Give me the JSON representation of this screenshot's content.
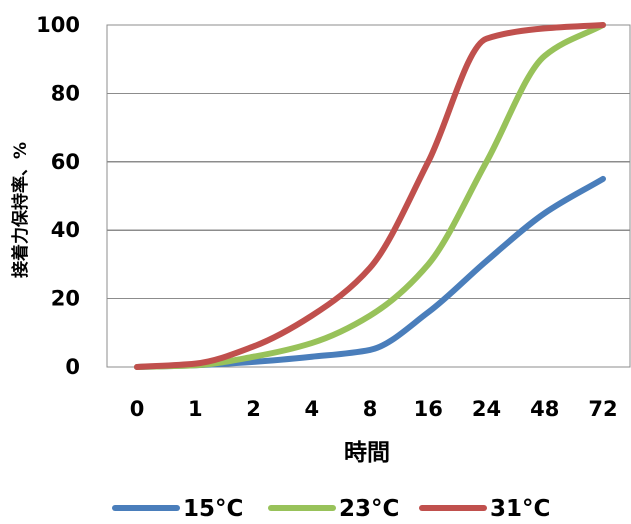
{
  "chart_data": {
    "type": "line",
    "title": "",
    "xlabel": "時間",
    "ylabel": "接着力保持率、%",
    "categories": [
      "0",
      "1",
      "2",
      "4",
      "8",
      "16",
      "24",
      "48",
      "72"
    ],
    "x": [
      0,
      1,
      2,
      3,
      4,
      5,
      6,
      7,
      8
    ],
    "y_ticks": [
      "0",
      "20",
      "40",
      "60",
      "80",
      "100"
    ],
    "ylim": [
      0,
      100
    ],
    "grid": true,
    "legend": "bottom",
    "series": [
      {
        "name": "15°C",
        "color": "#4a7ebb",
        "values": [
          0,
          0.5,
          1.5,
          3,
          5,
          16,
          31,
          45,
          55
        ]
      },
      {
        "name": "23°C",
        "color": "#98c25a",
        "values": [
          0,
          0.5,
          3,
          7,
          15,
          30,
          60,
          91,
          100
        ]
      },
      {
        "name": "31°C",
        "color": "#c0504d",
        "values": [
          0,
          1,
          6,
          15,
          29,
          60,
          96,
          99,
          100
        ]
      }
    ]
  }
}
